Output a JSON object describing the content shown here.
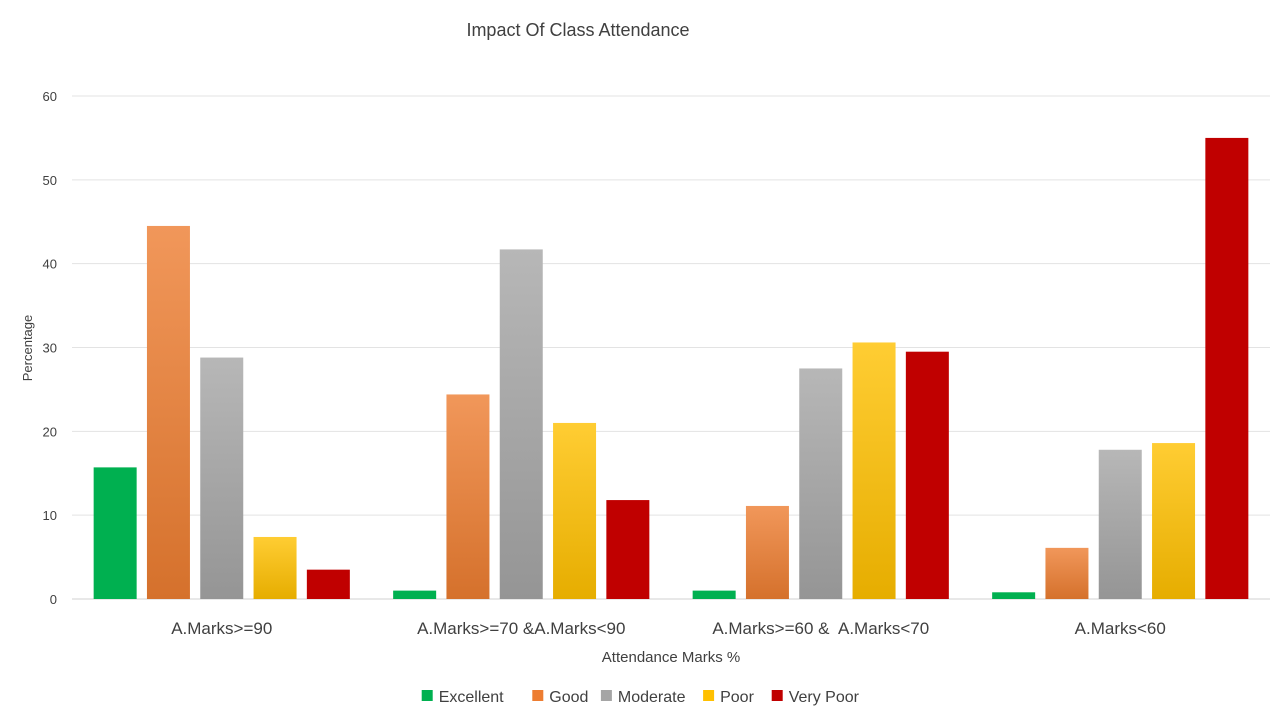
{
  "chart_data": {
    "type": "bar",
    "title": "Impact Of Class Attendance",
    "xlabel": "Attendance Marks %",
    "ylabel": "Percentage",
    "ylim": [
      0,
      60
    ],
    "yticks": [
      0,
      10,
      20,
      30,
      40,
      50,
      60
    ],
    "grid": true,
    "legend_position": "bottom",
    "categories": [
      "A.Marks>=90",
      "A.Marks>=70 &A.Marks<90",
      "A.Marks>=60 &  A.Marks<70",
      "A.Marks<60"
    ],
    "series": [
      {
        "name": "Excellent",
        "color": "#00b050",
        "values": [
          15.7,
          1.0,
          1.0,
          0.8
        ]
      },
      {
        "name": "Good",
        "color": "#ed7d31",
        "values": [
          44.5,
          24.4,
          11.1,
          6.1
        ]
      },
      {
        "name": "Moderate",
        "color": "#a5a5a5",
        "values": [
          28.8,
          41.7,
          27.5,
          17.8
        ]
      },
      {
        "name": "Poor",
        "color": "#ffc000",
        "values": [
          7.4,
          21.0,
          30.6,
          18.6
        ]
      },
      {
        "name": "Very Poor",
        "color": "#c00000",
        "values": [
          3.5,
          11.8,
          29.5,
          55.0
        ]
      }
    ]
  }
}
